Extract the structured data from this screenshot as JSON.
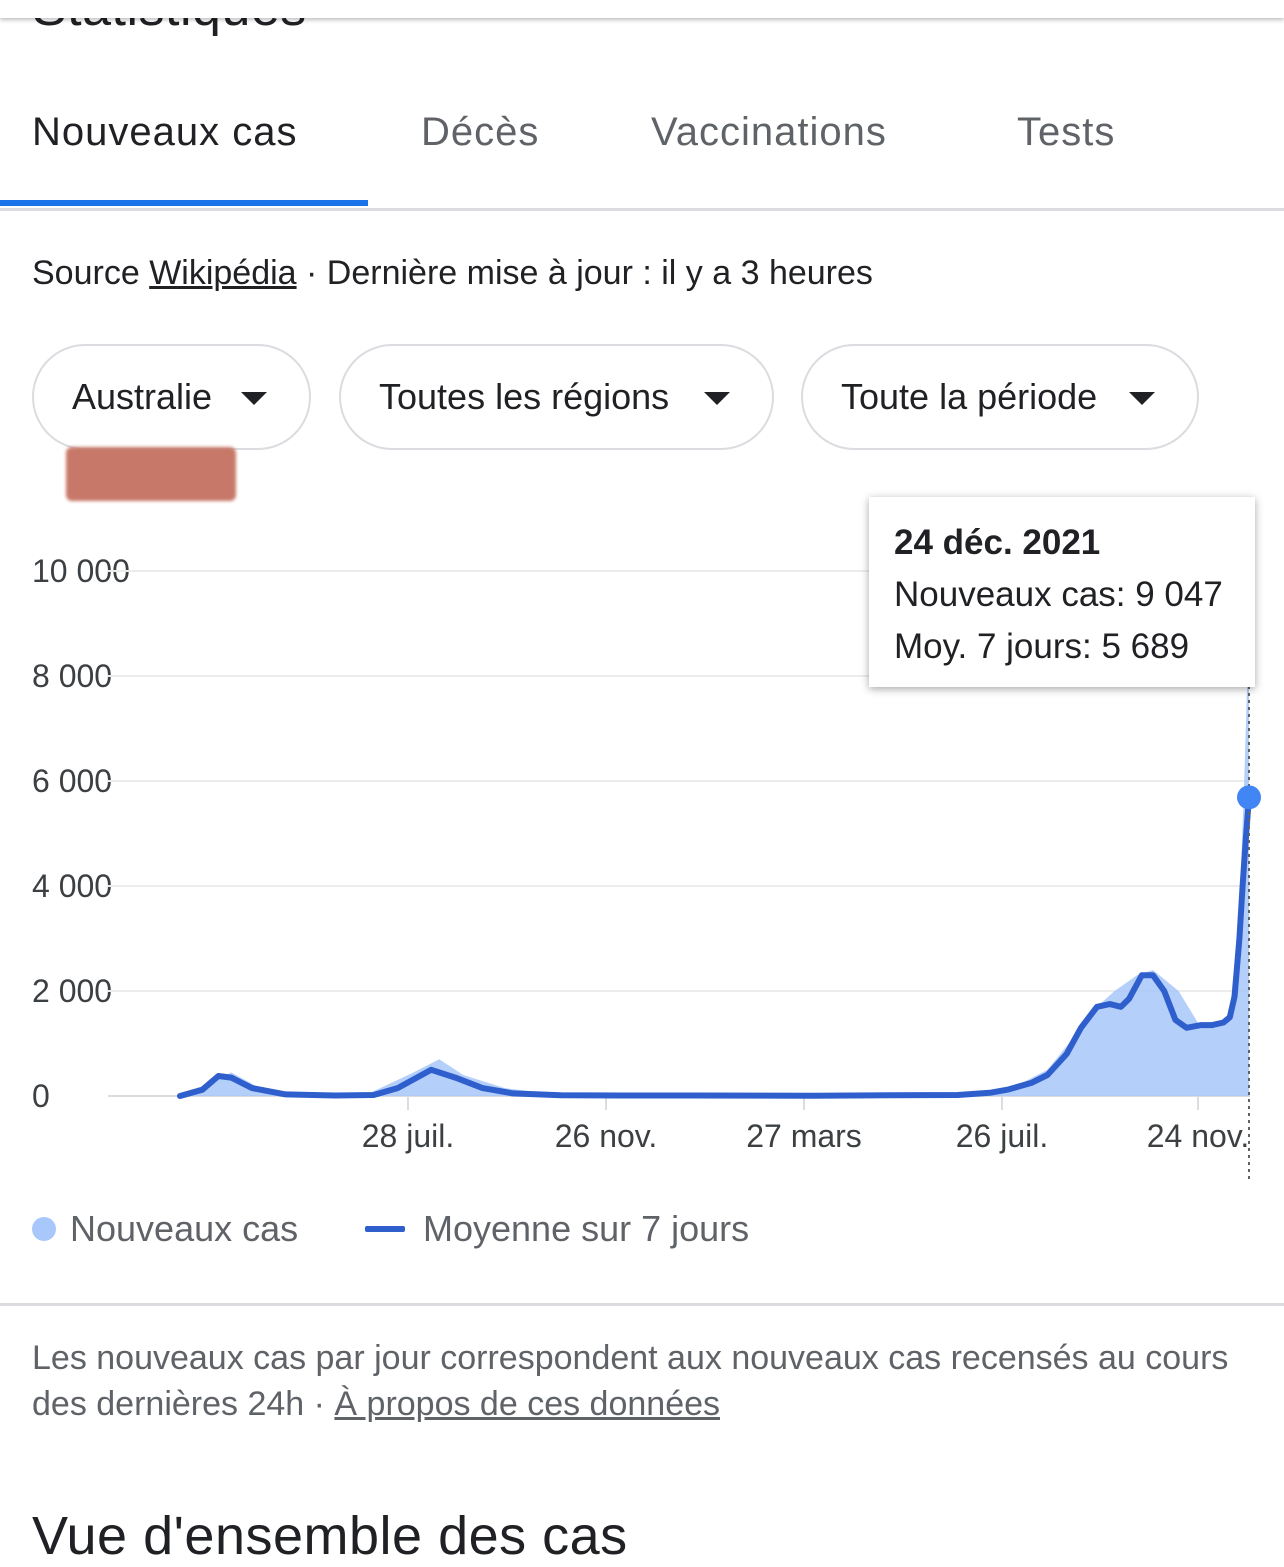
{
  "section_title": "Statistiques",
  "tabs": [
    {
      "label": "Nouveaux cas",
      "active": true
    },
    {
      "label": "Décès",
      "active": false
    },
    {
      "label": "Vaccinations",
      "active": false
    },
    {
      "label": "Tests",
      "active": false
    }
  ],
  "source": {
    "prefix": "Source ",
    "link": "Wikipédia",
    "updated": " · Dernière mise à jour : il y a 3 heures"
  },
  "filters": {
    "country": "Australie",
    "region": "Toutes les régions",
    "period": "Toute la période"
  },
  "tooltip": {
    "date": "24 déc. 2021",
    "new_cases_label": "Nouveaux cas: 9 047",
    "avg_label": "Moy. 7 jours: 5 689"
  },
  "legend": {
    "bars": "Nouveaux cas",
    "line": "Moyenne sur 7 jours"
  },
  "note": {
    "text": "Les nouveaux cas par jour correspondent aux nouveaux cas recensés au cours des dernières 24h",
    "sep": " · ",
    "link": "À propos de ces données"
  },
  "overview_title": "Vue d'ensemble des cas",
  "colors": {
    "accent": "#1a73e8",
    "line": "#2f5fcc",
    "area": "#a8c7fa"
  },
  "chart_data": {
    "type": "area",
    "ylim": [
      0,
      10000
    ],
    "yticks": [
      0,
      2000,
      4000,
      6000,
      8000,
      10000
    ],
    "ytick_labels": [
      "0",
      "2 000",
      "4 000",
      "6 000",
      "8 000",
      "10 000"
    ],
    "xtick_labels": [
      "28 juil.",
      "26 nov.",
      "27 mars",
      "26 juil.",
      "24 nov."
    ],
    "series": [
      {
        "name": "Nouveaux cas",
        "x": [
          "2020-02-25",
          "2020-03-15",
          "2020-03-28",
          "2020-04-15",
          "2020-05-15",
          "2020-06-20",
          "2020-07-20",
          "2020-08-05",
          "2020-08-20",
          "2020-09-15",
          "2020-10-20",
          "2021-01-01",
          "2021-04-01",
          "2021-06-01",
          "2021-07-15",
          "2021-08-01",
          "2021-08-20",
          "2021-09-05",
          "2021-09-20",
          "2021-10-01",
          "2021-10-15",
          "2021-10-25",
          "2021-11-10",
          "2021-11-24",
          "2021-12-05",
          "2021-12-12",
          "2021-12-18",
          "2021-12-21",
          "2021-12-24"
        ],
        "values": [
          0,
          250,
          450,
          150,
          20,
          20,
          450,
          700,
          400,
          150,
          20,
          10,
          5,
          15,
          30,
          200,
          500,
          1100,
          1700,
          2000,
          2300,
          2400,
          2000,
          1300,
          1350,
          1600,
          3500,
          6000,
          9047
        ]
      },
      {
        "name": "Moyenne sur 7 jours",
        "x": [
          "2020-02-25",
          "2020-03-10",
          "2020-03-20",
          "2020-03-28",
          "2020-04-10",
          "2020-05-01",
          "2020-06-01",
          "2020-06-25",
          "2020-07-10",
          "2020-07-31",
          "2020-08-15",
          "2020-09-01",
          "2020-09-20",
          "2020-10-20",
          "2020-11-26",
          "2021-01-10",
          "2021-03-27",
          "2021-05-15",
          "2021-06-25",
          "2021-07-15",
          "2021-07-26",
          "2021-08-10",
          "2021-08-20",
          "2021-09-01",
          "2021-09-10",
          "2021-09-20",
          "2021-09-28",
          "2021-10-05",
          "2021-10-10",
          "2021-10-18",
          "2021-10-25",
          "2021-11-01",
          "2021-11-08",
          "2021-11-15",
          "2021-11-24",
          "2021-12-01",
          "2021-12-08",
          "2021-12-12",
          "2021-12-15",
          "2021-12-18",
          "2021-12-20",
          "2021-12-22",
          "2021-12-24"
        ],
        "values": [
          0,
          120,
          380,
          350,
          150,
          30,
          10,
          20,
          150,
          500,
          350,
          150,
          50,
          15,
          10,
          10,
          5,
          15,
          20,
          60,
          120,
          250,
          400,
          800,
          1300,
          1700,
          1750,
          1700,
          1850,
          2300,
          2300,
          2000,
          1450,
          1300,
          1350,
          1350,
          1400,
          1500,
          1900,
          3000,
          4000,
          4900,
          5689
        ]
      }
    ]
  }
}
